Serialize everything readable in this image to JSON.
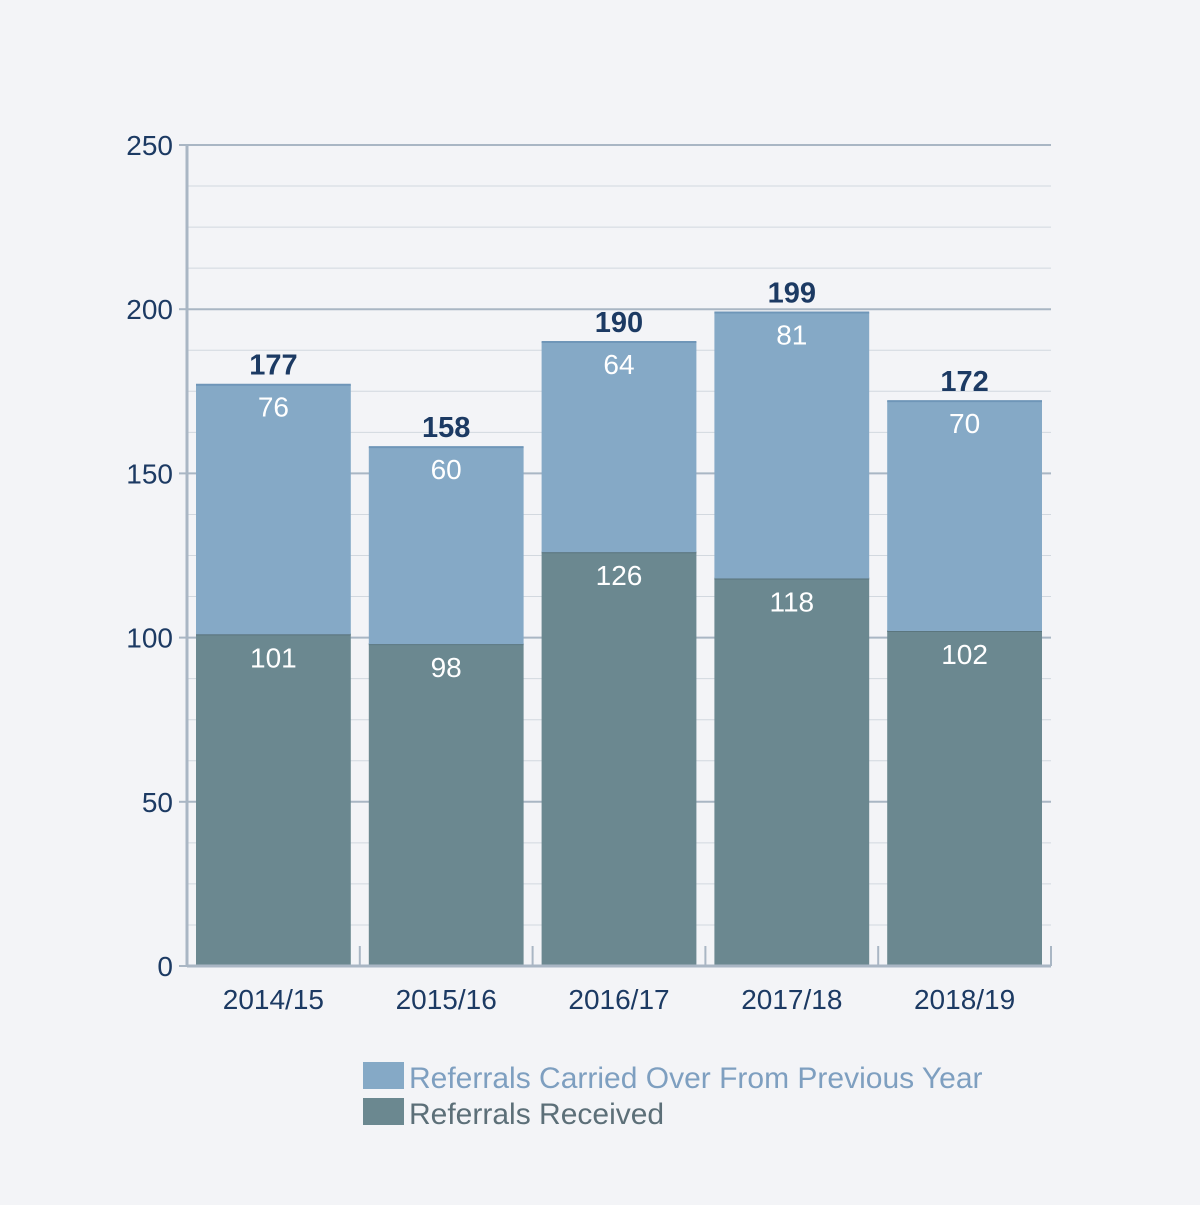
{
  "chart_data": {
    "type": "bar",
    "stacked": true,
    "title": "",
    "xlabel": "",
    "ylabel": "",
    "categories": [
      "2014/15",
      "2015/16",
      "2016/17",
      "2017/18",
      "2018/19"
    ],
    "series": [
      {
        "name": "Referrals Received",
        "values": [
          101,
          98,
          126,
          118,
          102
        ],
        "color": "#6b8890"
      },
      {
        "name": "Referrals Carried Over From Previous Year",
        "values": [
          76,
          60,
          64,
          81,
          70
        ],
        "color": "#85a9c6"
      }
    ],
    "totals": [
      177,
      158,
      190,
      199,
      172
    ],
    "ylim": [
      0,
      250
    ],
    "yticks": [
      0,
      50,
      100,
      150,
      200,
      250
    ],
    "grid": true,
    "legend": [
      {
        "label": "Referrals Carried Over From Previous Year",
        "color": "#85a9c6",
        "text_color": "#7e9fc0"
      },
      {
        "label": "Referrals Received",
        "color": "#6b8890",
        "text_color": "#5c6f78"
      }
    ],
    "legend_position": "bottom",
    "colors": {
      "axis": "#a9b6c4",
      "grid": "#d2d8df",
      "label": "#1c3a63",
      "background": "#f3f4f7"
    }
  }
}
